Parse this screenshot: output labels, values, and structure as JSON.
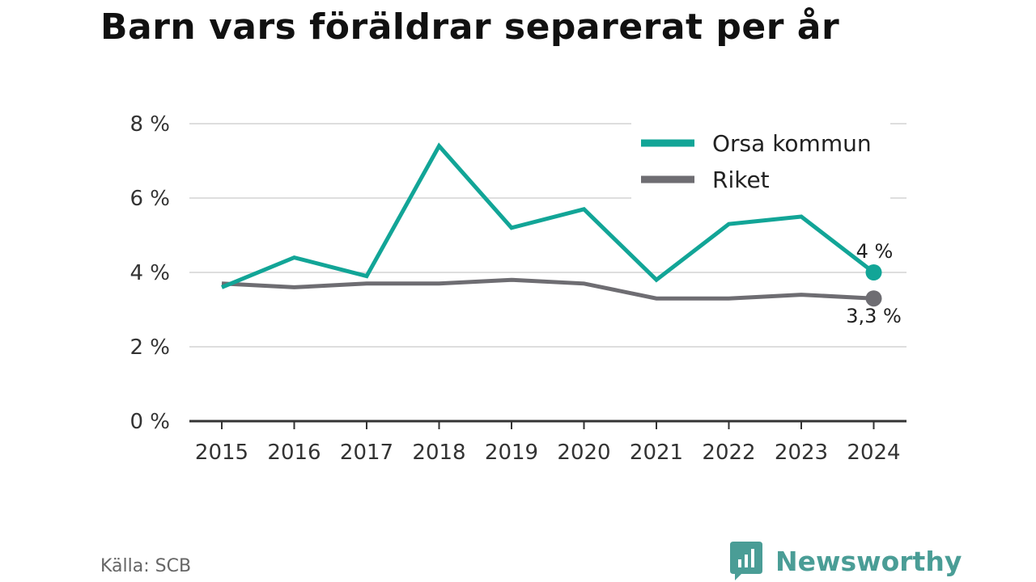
{
  "chart_data": {
    "type": "line",
    "title": "Barn vars föräldrar separerat per år",
    "categories": [
      "2015",
      "2016",
      "2017",
      "2018",
      "2019",
      "2020",
      "2021",
      "2022",
      "2023",
      "2024"
    ],
    "series": [
      {
        "name": "Orsa kommun",
        "color": "#12a597",
        "values": [
          3.6,
          4.4,
          3.9,
          7.4,
          5.2,
          5.7,
          3.8,
          5.3,
          5.5,
          4.0
        ],
        "end_label": "4 %"
      },
      {
        "name": "Riket",
        "color": "#6e6d72",
        "values": [
          3.7,
          3.6,
          3.7,
          3.7,
          3.8,
          3.7,
          3.3,
          3.3,
          3.4,
          3.3
        ],
        "end_label": "3,3 %"
      }
    ],
    "yticks": [
      {
        "value": 0,
        "label": "0 %"
      },
      {
        "value": 2,
        "label": "2 %"
      },
      {
        "value": 4,
        "label": "4 %"
      },
      {
        "value": 6,
        "label": "6 %"
      },
      {
        "value": 8,
        "label": "8 %"
      }
    ],
    "ylim": [
      0,
      8
    ],
    "grid": true,
    "legend_position": "top-right"
  },
  "source": "Källa: SCB",
  "brand": {
    "name": "Newsworthy",
    "color": "#4a9d96",
    "icon": "newsworthy-logo-icon"
  }
}
